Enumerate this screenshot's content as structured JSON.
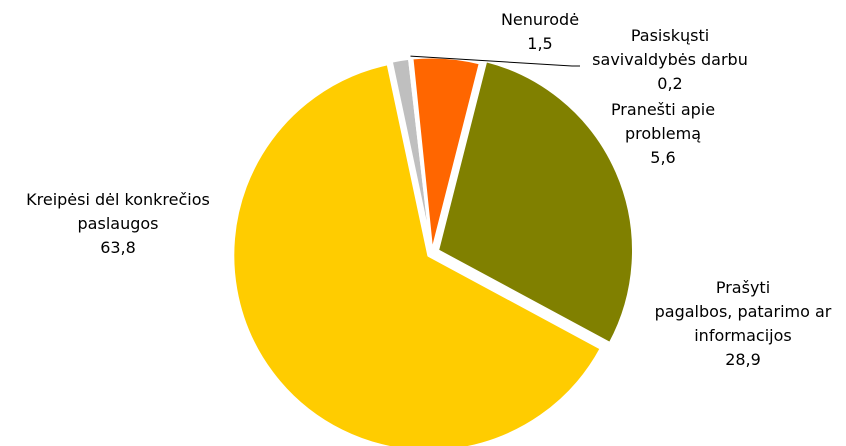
{
  "chart_data": {
    "type": "pie",
    "title": "",
    "slices": [
      {
        "label_lines": [
          "Nenurodė"
        ],
        "value": 1.5,
        "value_text": "1,5",
        "color": "#BFBFBF"
      },
      {
        "label_lines": [
          "Pasiskųsti",
          "savivaldybės darbu"
        ],
        "value": 0.2,
        "value_text": "0,2",
        "color": "#8B1A00"
      },
      {
        "label_lines": [
          "Pranešti apie",
          "problemą"
        ],
        "value": 5.6,
        "value_text": "5,6",
        "color": "#FF6600"
      },
      {
        "label_lines": [
          "Prašyti",
          "pagalbos, patarimo ar",
          "informacijos"
        ],
        "value": 28.9,
        "value_text": "28,9",
        "color": "#808000"
      },
      {
        "label_lines": [
          "Kreipėsi dėl konkrečios",
          "paslaugos"
        ],
        "value": 63.8,
        "value_text": "63,8",
        "color": "#FFCC00"
      }
    ],
    "legend": "none"
  }
}
